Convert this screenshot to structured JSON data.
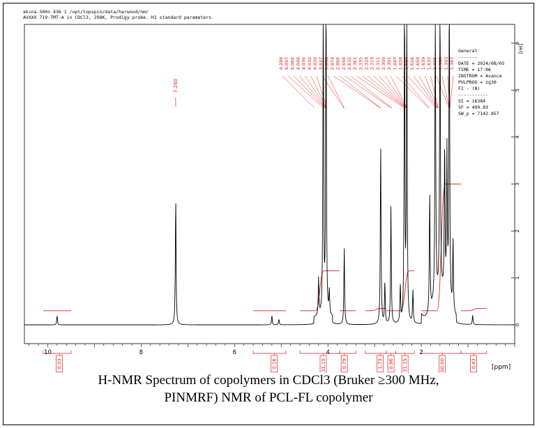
{
  "header": {
    "line1": "akina-500n  436  1  /opt/topspin/data/harwood/nmr",
    "line2": "AVXXX 719-TMT-A in CDCl3, 298K, Prodigy probe.  H1 standard parameters."
  },
  "params": {
    "title": "General",
    "dashes": "-------",
    "date": "DATE = 2024/08/05",
    "time": "TIME =  17:06",
    "instrum": "INSTRUM = Avance",
    "pulprog": "PULPROG = zg30",
    "f2": "F2 - (N)",
    "dashes2": "-----------",
    "si": "SI =  16384",
    "sf": "SF =  499.83",
    "swp": "SW_p =  7142.857"
  },
  "colors": {
    "spectrum": "#000000",
    "annotation": "#e02020"
  },
  "caption": {
    "line1": "H-NMR Spectrum of copolymers in CDCl3 (Bruker ≥300 MHz,",
    "line2": "PINMRF) NMR of PCL-FL copolymer"
  },
  "chart_data": {
    "type": "line",
    "xlabel": "[ppm]",
    "ylabel": "[rel]",
    "x_reversed": true,
    "xlim": [
      10.5,
      0
    ],
    "ylim": [
      -0.4,
      6.4
    ],
    "x_ticks": [
      10,
      8,
      6,
      4,
      2
    ],
    "y_ticks": [
      0,
      1,
      2,
      3,
      4,
      5,
      6
    ],
    "peaks": [
      {
        "ppm": 9.8,
        "height": 0.2
      },
      {
        "ppm": 7.26,
        "height": 2.7
      },
      {
        "ppm": 5.2,
        "height": 0.2
      },
      {
        "ppm": 5.05,
        "height": 0.12
      },
      {
        "ppm": 4.2,
        "height": 0.8
      },
      {
        "ppm": 4.1,
        "height": 7.0
      },
      {
        "ppm": 4.04,
        "height": 7.0
      },
      {
        "ppm": 3.97,
        "height": 0.5
      },
      {
        "ppm": 3.65,
        "height": 1.65
      },
      {
        "ppm": 2.87,
        "height": 3.95
      },
      {
        "ppm": 2.78,
        "height": 0.9
      },
      {
        "ppm": 2.65,
        "height": 2.55
      },
      {
        "ppm": 2.45,
        "height": 0.8
      },
      {
        "ppm": 2.36,
        "height": 7.0
      },
      {
        "ppm": 2.31,
        "height": 7.0
      },
      {
        "ppm": 2.18,
        "height": 0.7
      },
      {
        "ppm": 1.82,
        "height": 2.6
      },
      {
        "ppm": 1.7,
        "height": 7.0
      },
      {
        "ppm": 1.6,
        "height": 7.0
      },
      {
        "ppm": 1.5,
        "height": 3.2
      },
      {
        "ppm": 1.45,
        "height": 3.1
      },
      {
        "ppm": 1.4,
        "height": 7.0
      },
      {
        "ppm": 1.32,
        "height": 1.5
      },
      {
        "ppm": 0.9,
        "height": 0.2
      }
    ],
    "peak_label": "7.260",
    "peak_label_ppm": 7.26,
    "peak_pick_labels": [
      "4.288",
      "4.097",
      "4.064",
      "4.048",
      "4.036",
      "4.032",
      "4.020",
      "3.657",
      "3.650",
      "2.874",
      "2.866",
      "2.648",
      "2.632",
      "2.361",
      "2.335",
      "2.324",
      "2.319",
      "2.311",
      "2.305",
      "2.301",
      "1.847",
      "1.828",
      "1.680",
      "1.656",
      "1.650",
      "1.639",
      "1.637",
      "1.405",
      "1.398",
      "1.393",
      "1.387"
    ],
    "integrals": [
      {
        "label": "0.03",
        "ppm": 9.75,
        "from": 10.1,
        "to": 9.5,
        "start": 0.3,
        "end": 0.3
      },
      {
        "label": "0.16",
        "ppm": 5.15,
        "from": 5.6,
        "to": 4.9,
        "start": 0.3,
        "end": 0.3
      },
      {
        "label": "31.15",
        "ppm": 4.1,
        "from": 4.6,
        "to": 3.75,
        "start": 0.3,
        "end": 1.15
      },
      {
        "label": "0.79",
        "ppm": 3.65,
        "from": 3.75,
        "to": 3.4,
        "start": 0.3,
        "end": 0.3
      },
      {
        "label": "1.73",
        "ppm": 2.88,
        "from": 3.2,
        "to": 2.75,
        "start": 0.3,
        "end": 0.35
      },
      {
        "label": "0.96",
        "ppm": 2.65,
        "from": 2.75,
        "to": 2.55,
        "start": 0.3,
        "end": 0.3
      },
      {
        "label": "31.15",
        "ppm": 2.35,
        "from": 2.55,
        "to": 2.15,
        "start": 0.3,
        "end": 1.15
      },
      {
        "label": "100.00",
        "ppm": 1.55,
        "from": 2.0,
        "to": 1.15,
        "start": 0.3,
        "end": 3.0
      },
      {
        "label": "0.43",
        "ppm": 0.88,
        "from": 1.15,
        "to": 0.6,
        "start": 0.3,
        "end": 0.35
      }
    ]
  }
}
